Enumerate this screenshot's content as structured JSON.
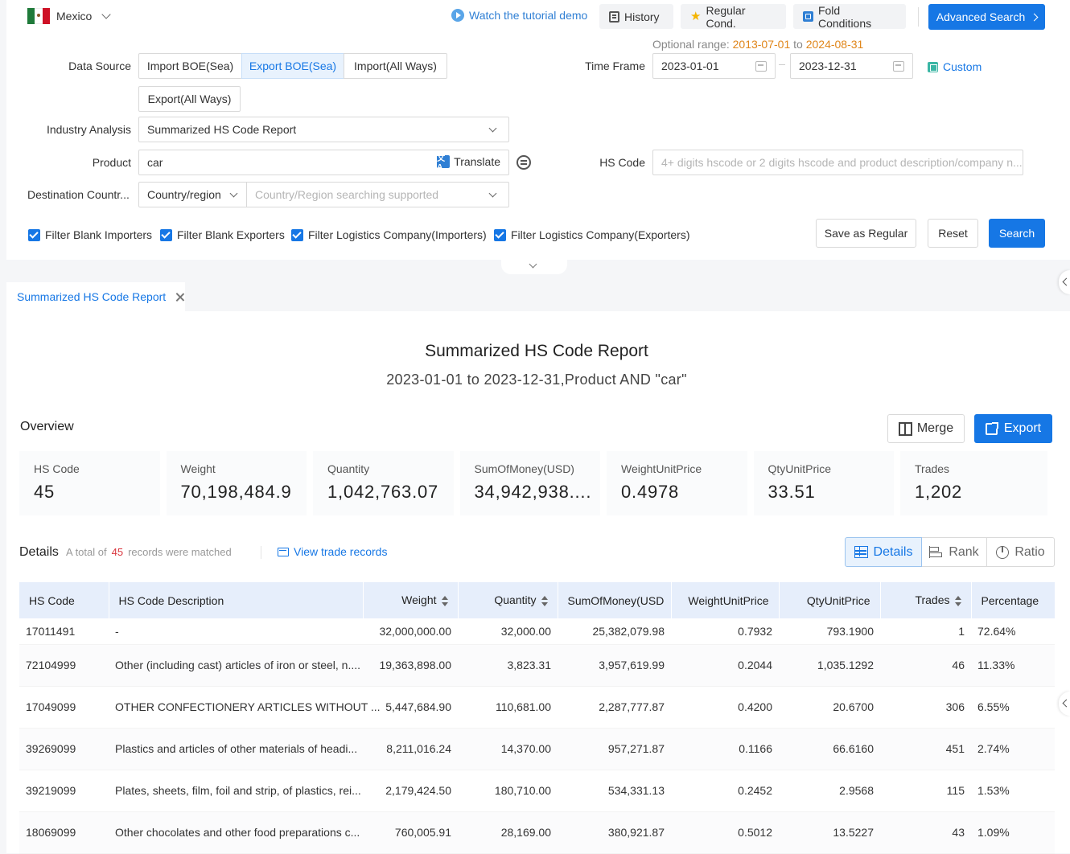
{
  "topbar": {
    "country": "Mexico",
    "tutorial": "Watch the tutorial demo",
    "history": "History",
    "regular_cond": "Regular Cond.",
    "fold_conditions": "Fold Conditions",
    "advanced_search": "Advanced Search"
  },
  "filters": {
    "data_source_label": "Data Source",
    "data_source_options": [
      "Import BOE(Sea)",
      "Export BOE(Sea)",
      "Import(All Ways)",
      "Export(All Ways)"
    ],
    "data_source_selected": "Export BOE(Sea)",
    "optional_range_label": "Optional range:",
    "optional_range_start": "2013-07-01",
    "optional_range_to": "to",
    "optional_range_end": "2024-08-31",
    "time_frame_label": "Time Frame",
    "time_start": "2023-01-01",
    "time_end": "2023-12-31",
    "custom": "Custom",
    "industry_label": "Industry Analysis",
    "industry_value": "Summarized HS Code Report",
    "product_label": "Product",
    "product_value": "car",
    "translate": "Translate",
    "hs_label": "HS Code",
    "hs_placeholder": "4+ digits hscode or 2 digits hscode and product description/company n...",
    "destination_label": "Destination Countr...",
    "destination_type": "Country/region",
    "destination_placeholder": "Country/Region searching supported",
    "checkboxes": [
      "Filter Blank Importers",
      "Filter Blank Exporters",
      "Filter Logistics Company(Importers)",
      "Filter Logistics Company(Exporters)"
    ],
    "save_regular": "Save as Regular",
    "reset": "Reset",
    "search": "Search"
  },
  "tab": {
    "label": "Summarized HS Code Report"
  },
  "report": {
    "title": "Summarized HS Code Report",
    "subtitle": "2023-01-01 to 2023-12-31,Product AND \"car\"",
    "overview_label": "Overview",
    "merge": "Merge",
    "export": "Export",
    "cards": [
      {
        "key": "HS Code",
        "value": "45"
      },
      {
        "key": "Weight",
        "value": "70,198,484.9"
      },
      {
        "key": "Quantity",
        "value": "1,042,763.07"
      },
      {
        "key": "SumOfMoney(USD)",
        "value": "34,942,938...."
      },
      {
        "key": "WeightUnitPrice",
        "value": "0.4978"
      },
      {
        "key": "QtyUnitPrice",
        "value": "33.51"
      },
      {
        "key": "Trades",
        "value": "1,202"
      }
    ],
    "details_label": "Details",
    "total_prefix": "A total of",
    "total_count": "45",
    "total_suffix": "records were matched",
    "view_records": "View trade records",
    "view_tabs": [
      "Details",
      "Rank",
      "Ratio"
    ]
  },
  "table": {
    "headers": [
      "HS Code",
      "HS Code Description",
      "Weight",
      "Quantity",
      "SumOfMoney(USD",
      "WeightUnitPrice",
      "QtyUnitPrice",
      "Trades",
      "Percentage"
    ],
    "rows": [
      [
        "17011491",
        "-",
        "32,000,000.00",
        "32,000.00",
        "25,382,079.98",
        "0.7932",
        "793.1900",
        "1",
        "72.64%"
      ],
      [
        "72104999",
        "Other (including cast) articles of iron or steel, n....",
        "19,363,898.00",
        "3,823.31",
        "3,957,619.99",
        "0.2044",
        "1,035.1292",
        "46",
        "11.33%"
      ],
      [
        "17049099",
        "OTHER CONFECTIONERY ARTICLES WITHOUT ...",
        "5,447,684.90",
        "110,681.00",
        "2,287,777.87",
        "0.4200",
        "20.6700",
        "306",
        "6.55%"
      ],
      [
        "39269099",
        "Plastics and articles of other materials of headi...",
        "8,211,016.24",
        "14,370.00",
        "957,271.87",
        "0.1166",
        "66.6160",
        "451",
        "2.74%"
      ],
      [
        "39219099",
        "Plates, sheets, film, foil and strip, of plastics, rei...",
        "2,179,424.50",
        "180,710.00",
        "534,331.13",
        "0.2452",
        "2.9568",
        "115",
        "1.53%"
      ],
      [
        "18069099",
        "Other chocolates and other food preparations c...",
        "760,005.91",
        "28,169.00",
        "380,921.87",
        "0.5012",
        "13.5227",
        "43",
        "1.09%"
      ]
    ]
  }
}
